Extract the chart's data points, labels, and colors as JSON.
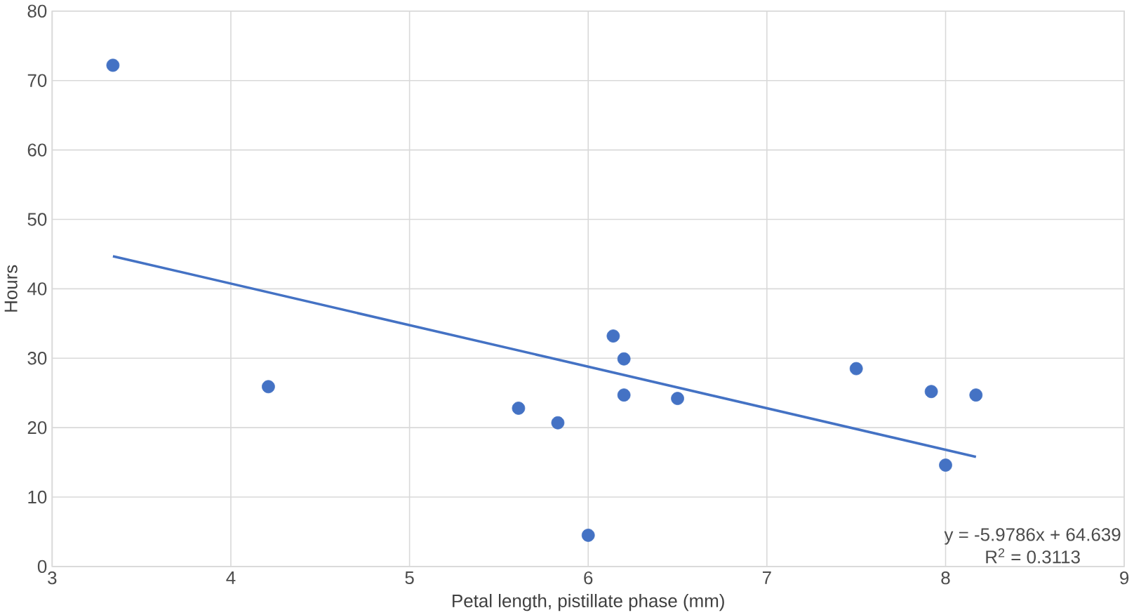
{
  "chart_data": {
    "type": "scatter",
    "xlabel": "Petal length, pistillate phase (mm)",
    "ylabel": "Hours",
    "xlim": [
      3,
      9
    ],
    "xticks": [
      3,
      4,
      5,
      6,
      7,
      8,
      9
    ],
    "ylim": [
      0,
      80
    ],
    "yticks": [
      0,
      10,
      20,
      30,
      40,
      50,
      60,
      70,
      80
    ],
    "grid": true,
    "series": [
      {
        "marker": "circle",
        "color": "#4472c4",
        "x": [
          3.34,
          4.21,
          5.61,
          5.83,
          6.0,
          6.14,
          6.2,
          6.2,
          6.5,
          7.5,
          7.92,
          8.17,
          8.0
        ],
        "values": [
          72.2,
          25.9,
          22.8,
          20.7,
          4.5,
          33.2,
          29.9,
          24.7,
          24.2,
          28.5,
          25.2,
          24.7,
          14.6
        ]
      },
      {
        "type": "line",
        "marker": "none",
        "color": "#4472c4",
        "x": [
          3.34,
          8.17
        ],
        "values": [
          44.7,
          15.8
        ]
      }
    ],
    "annotations": [
      "y = -5.9786x + 64.639",
      "R$^{2}$ = 0.3113"
    ]
  }
}
